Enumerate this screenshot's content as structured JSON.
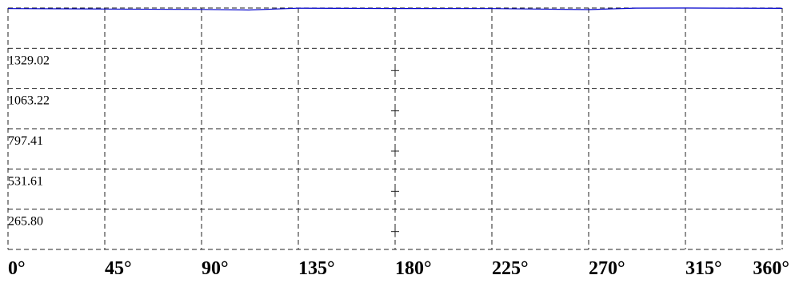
{
  "chart_data": {
    "type": "line",
    "title": "",
    "xlabel": "",
    "ylabel": "",
    "xlim": [
      0,
      360
    ],
    "ylim": [
      0,
      1594.82
    ],
    "grid": true,
    "x_ticks": [
      0,
      45,
      90,
      135,
      180,
      225,
      270,
      315,
      360
    ],
    "x_tick_labels": [
      "0°",
      "45°",
      "90°",
      "135°",
      "180°",
      "225°",
      "270°",
      "315°",
      "360°"
    ],
    "y_ticks": [
      265.8,
      531.61,
      797.41,
      1063.22,
      1329.02
    ],
    "y_tick_labels": [
      "265.80",
      "531.61",
      "797.41",
      "1063.22",
      "1329.02"
    ],
    "series": [
      {
        "color": "#0000cc",
        "x": [
          0,
          45,
          90,
          112,
          135,
          180,
          225,
          270,
          292,
          315,
          360
        ],
        "y": [
          1591.2,
          1587.8,
          1585.5,
          1581.7,
          1593.5,
          1591.7,
          1590.9,
          1584.2,
          1594.3,
          1594.6,
          1592.8
        ]
      }
    ]
  }
}
